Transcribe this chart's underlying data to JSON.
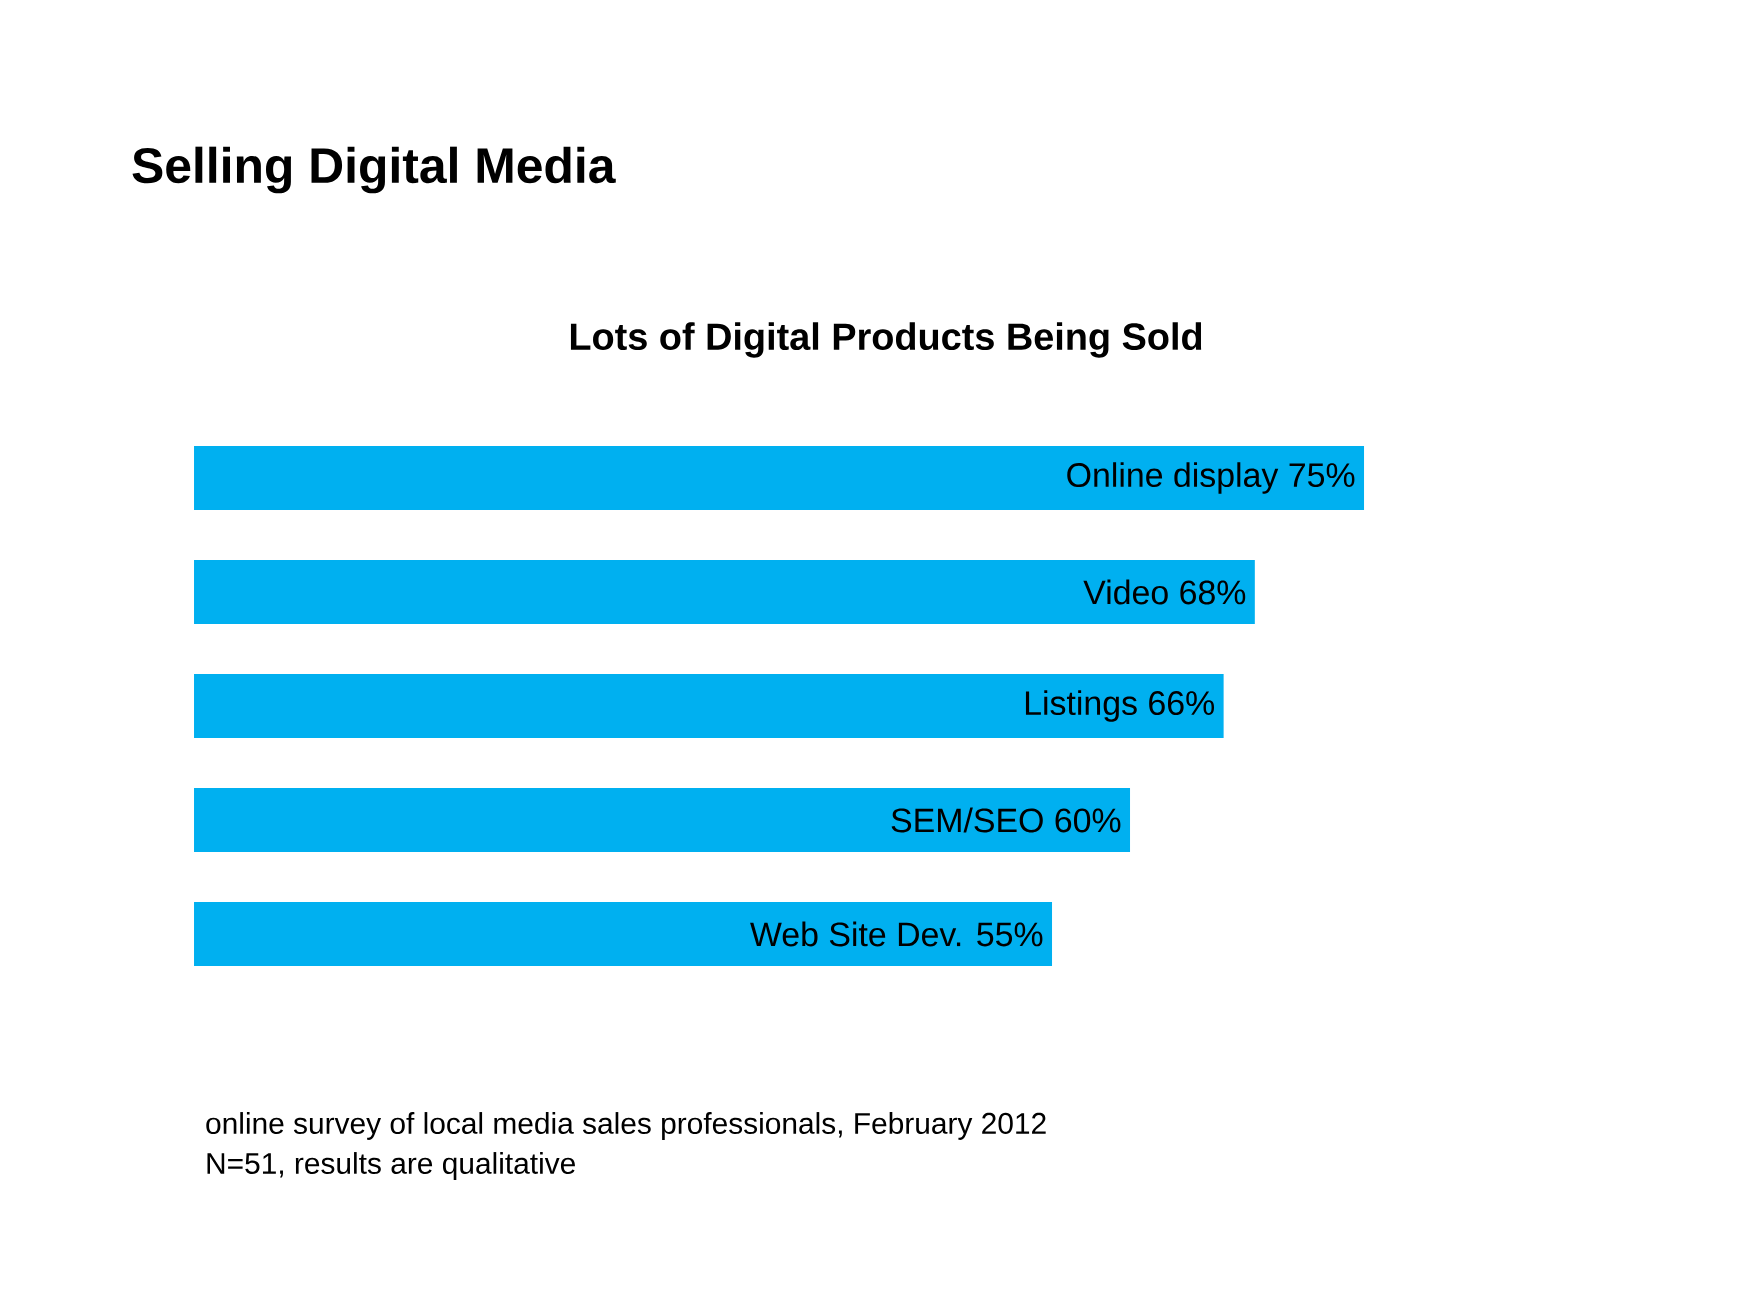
{
  "chart_data": {
    "type": "bar",
    "orientation": "horizontal",
    "title": "Selling Digital Media",
    "subtitle": "Lots of Digital Products Being Sold",
    "categories": [
      "Online display",
      "Video",
      "Listings",
      "SEM/SEO",
      "Web Site Dev."
    ],
    "values": [
      75,
      68,
      66,
      60,
      55
    ],
    "value_labels": [
      "75%",
      "68%",
      "66%",
      "60%",
      "55%"
    ],
    "color": "#00b0f0",
    "annotations": [
      "online survey of local media sales professionals, February 2012",
      "N=51, results are qualitative"
    ]
  }
}
